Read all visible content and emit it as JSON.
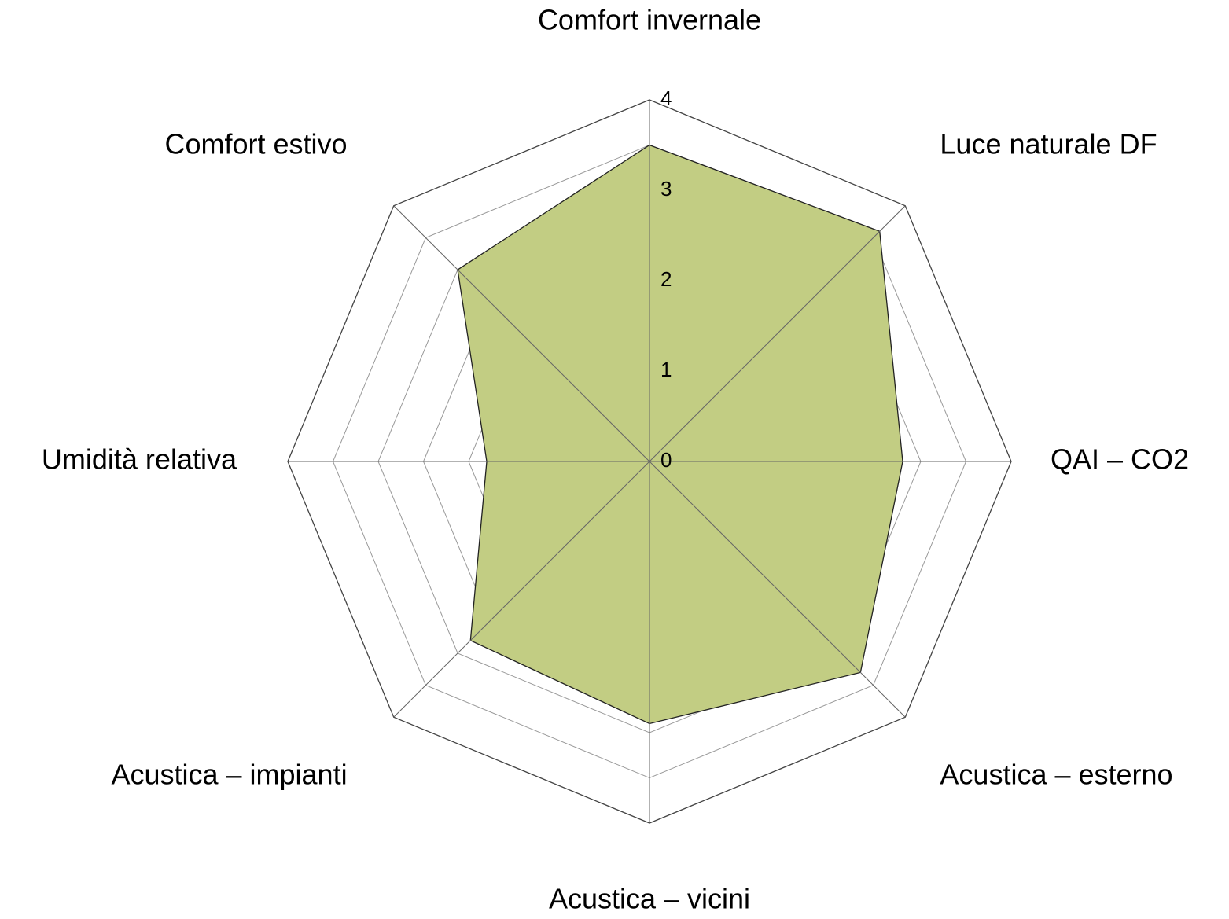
{
  "chart_data": {
    "type": "radar",
    "categories": [
      "Comfort invernale",
      "Luce naturale DF",
      "QAI – CO2",
      "Acustica – esterno",
      "Acustica – vicini",
      "Acustica – impianti",
      "Umidità relativa",
      "Comfort estivo"
    ],
    "values": [
      3.5,
      3.6,
      2.8,
      3.3,
      2.9,
      2.8,
      1.8,
      3.0
    ],
    "color": "#c2cd83",
    "ylim": [
      0,
      4
    ],
    "yticks": [
      0,
      1,
      2,
      3,
      4
    ],
    "grid": true,
    "minor_grid": true
  }
}
